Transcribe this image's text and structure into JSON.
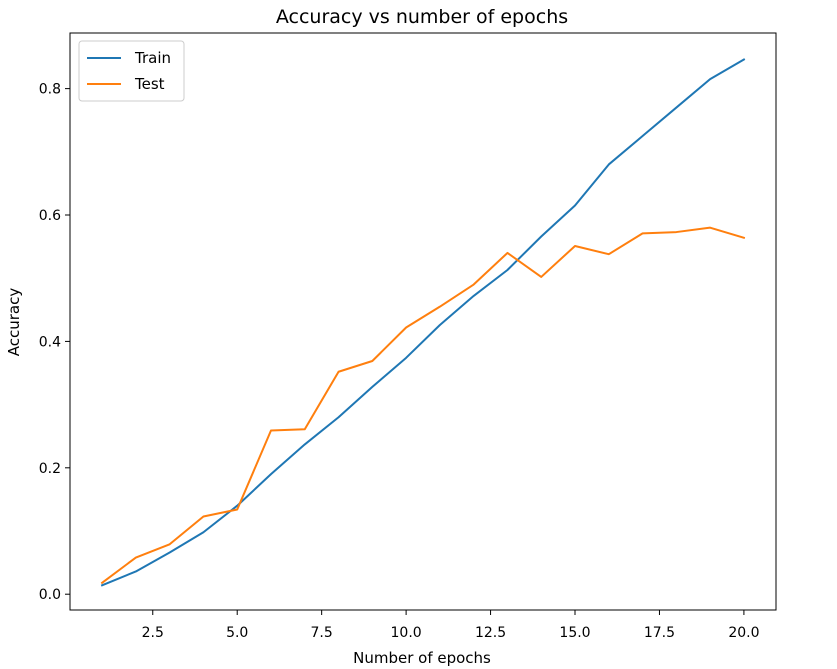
{
  "chart_data": {
    "type": "line",
    "title": "Accuracy vs number of epochs",
    "xlabel": "Number of epochs",
    "ylabel": "Accuracy",
    "xlim": [
      0.05,
      20.95
    ],
    "ylim": [
      -0.025,
      0.888
    ],
    "xticks": [
      2.5,
      5.0,
      7.5,
      10.0,
      12.5,
      15.0,
      17.5,
      20.0
    ],
    "xtick_labels": [
      "2.5",
      "5.0",
      "7.5",
      "10.0",
      "12.5",
      "15.0",
      "17.5",
      "20.0"
    ],
    "yticks": [
      0.0,
      0.2,
      0.4,
      0.6,
      0.8
    ],
    "ytick_labels": [
      "0.0",
      "0.2",
      "0.4",
      "0.6",
      "0.8"
    ],
    "grid": false,
    "legend": "top-left",
    "x": [
      1,
      2,
      3,
      4,
      5,
      6,
      7,
      8,
      9,
      10,
      11,
      12,
      13,
      14,
      15,
      16,
      17,
      18,
      19,
      20
    ],
    "series": [
      {
        "name": "Train",
        "color": "#1f77b4",
        "values": [
          0.014,
          0.036,
          0.066,
          0.098,
          0.14,
          0.19,
          0.237,
          0.28,
          0.328,
          0.374,
          0.426,
          0.472,
          0.513,
          0.566,
          0.615,
          0.68,
          0.725,
          0.77,
          0.815,
          0.846
        ]
      },
      {
        "name": "Test",
        "color": "#ff7f0e",
        "values": [
          0.018,
          0.058,
          0.079,
          0.123,
          0.134,
          0.259,
          0.261,
          0.352,
          0.369,
          0.422,
          0.455,
          0.49,
          0.54,
          0.502,
          0.551,
          0.538,
          0.571,
          0.573,
          0.58,
          0.564
        ]
      }
    ]
  }
}
